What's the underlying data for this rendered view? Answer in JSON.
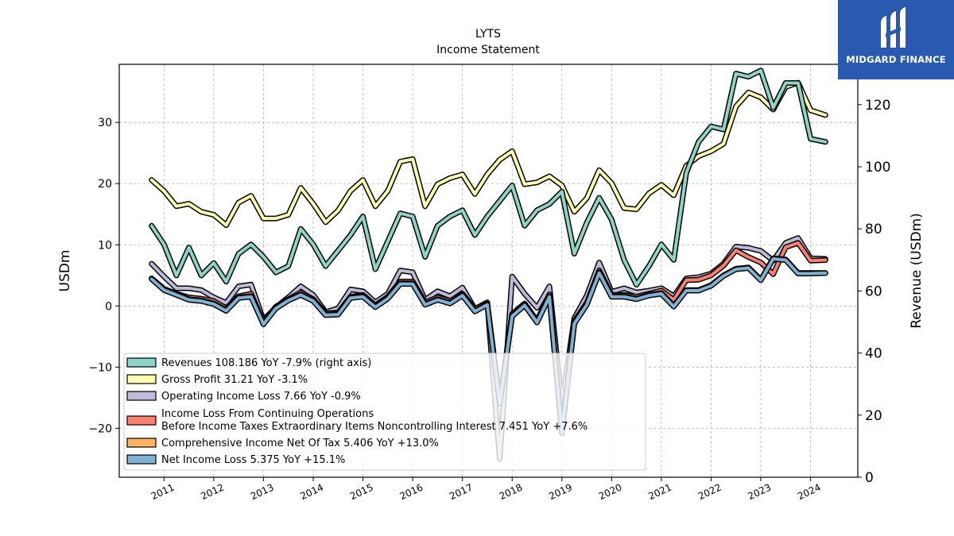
{
  "chart_data": {
    "type": "line",
    "title": "LYTS",
    "subtitle": "Income Statement",
    "ylabel": "USDm",
    "ylabel_right": "Revenue (USDm)",
    "ylim": [
      -28,
      39.5
    ],
    "ylim_right": [
      0,
      133
    ],
    "yticks": [
      -20,
      -10,
      0,
      10,
      20,
      30
    ],
    "yticks_right": [
      0,
      20,
      40,
      60,
      80,
      100,
      120
    ],
    "xlim": [
      2010.1,
      2024.95
    ],
    "xticks": [
      "2011",
      "2012",
      "2013",
      "2014",
      "2015",
      "2016",
      "2017",
      "2018",
      "2019",
      "2020",
      "2021",
      "2022",
      "2023",
      "2024"
    ],
    "grid": true,
    "legend_position": "lower-left",
    "x": [
      2010.75,
      2011.0,
      2011.25,
      2011.5,
      2011.75,
      2012.0,
      2012.25,
      2012.5,
      2012.75,
      2013.0,
      2013.25,
      2013.5,
      2013.75,
      2014.0,
      2014.25,
      2014.5,
      2014.75,
      2015.0,
      2015.25,
      2015.5,
      2015.75,
      2016.0,
      2016.25,
      2016.5,
      2016.75,
      2017.0,
      2017.25,
      2017.5,
      2017.75,
      2018.0,
      2018.25,
      2018.5,
      2018.75,
      2019.0,
      2019.25,
      2019.5,
      2019.75,
      2020.0,
      2020.25,
      2020.5,
      2020.75,
      2021.0,
      2021.25,
      2021.5,
      2021.75,
      2022.0,
      2022.25,
      2022.5,
      2022.75,
      2023.0,
      2023.25,
      2023.5,
      2023.75,
      2024.0,
      2024.3
    ],
    "series": [
      {
        "name": "Revenues",
        "legend": "Revenues  108.186 YoY -7.9% (right axis)",
        "axis": "right",
        "color": "#8dd3c7",
        "values": [
          81,
          75,
          65,
          74,
          65,
          69,
          63,
          72,
          75,
          71,
          66,
          68,
          80,
          75,
          68,
          73,
          78,
          84,
          67,
          76,
          85,
          84,
          71,
          81,
          84,
          86,
          78,
          84,
          89,
          94,
          81,
          86,
          88,
          92,
          72,
          82,
          90,
          83,
          70,
          62,
          68,
          75,
          70,
          98,
          108,
          113,
          112,
          130,
          129,
          131,
          119,
          127,
          127,
          109,
          108
        ]
      },
      {
        "name": "Gross Profit",
        "legend": "Gross Profit  31.21 YoY -3.1%",
        "axis": "left",
        "color": "#ffffb3",
        "values": [
          20.6,
          18.8,
          16.3,
          16.7,
          15.4,
          14.9,
          13.2,
          16.9,
          18.0,
          14.3,
          14.3,
          14.9,
          19.3,
          16.7,
          13.7,
          15.6,
          18.8,
          20.6,
          16.3,
          18.8,
          23.6,
          24.0,
          16.3,
          19.9,
          20.9,
          21.5,
          18.3,
          21.5,
          23.9,
          25.3,
          19.9,
          20.2,
          21.2,
          19.7,
          15.4,
          17.6,
          22.2,
          20.1,
          16.0,
          15.8,
          18.4,
          19.8,
          18.1,
          22.9,
          24.5,
          25.3,
          26.5,
          32.6,
          34.9,
          34.1,
          32.1,
          35.8,
          36.5,
          32.0,
          31.2
        ]
      },
      {
        "name": "Operating Income Loss",
        "legend": "Operating Income Loss  7.66 YoY -0.9%",
        "axis": "left",
        "color": "#bebada",
        "values": [
          6.9,
          4.8,
          2.9,
          2.9,
          2.6,
          1.4,
          0.5,
          3.2,
          3.5,
          -2.3,
          -0.2,
          1.4,
          3.2,
          1.8,
          -1.0,
          -0.4,
          2.7,
          2.4,
          0.6,
          2.0,
          5.8,
          5.5,
          1.0,
          2.4,
          1.6,
          3.0,
          -0.5,
          0.6,
          -25.0,
          4.8,
          2.0,
          -0.3,
          3.2,
          -16.0,
          -2.0,
          1.7,
          7.1,
          2.3,
          2.9,
          2.2,
          2.5,
          2.9,
          1.6,
          4.5,
          4.7,
          5.3,
          6.9,
          9.7,
          9.5,
          9.0,
          7.4,
          10.3,
          11.1,
          7.8,
          7.7
        ]
      },
      {
        "name": "Income Loss From Continuing Operations Before Income Taxes Extraordinary Items Noncontrolling Interest",
        "legend_line1": "Income Loss From Continuing Operations",
        "legend_line2": "Before Income Taxes Extraordinary Items Noncontrolling Interest  7.451 YoY +7.6%",
        "axis": "left",
        "color": "#fb8072",
        "values": [
          4.5,
          2.8,
          2.0,
          1.4,
          1.2,
          0.8,
          -0.4,
          1.6,
          2.0,
          -2.7,
          -0.1,
          1.1,
          2.2,
          1.1,
          -1.2,
          -1.1,
          1.5,
          1.8,
          0.1,
          1.5,
          4.0,
          4.0,
          0.6,
          1.4,
          0.8,
          2.0,
          -0.5,
          0.5,
          -15.5,
          -1.3,
          0.4,
          -2.4,
          1.9,
          -20.5,
          -2.5,
          0.5,
          5.8,
          1.8,
          1.8,
          1.5,
          2.0,
          2.5,
          1.0,
          4.2,
          4.3,
          5.0,
          6.6,
          9.1,
          8.0,
          7.1,
          5.2,
          9.6,
          10.3,
          7.4,
          7.5
        ]
      },
      {
        "name": "Comprehensive Income Net Of Tax",
        "legend": "Comprehensive Income Net Of Tax  5.406 YoY +13.0%",
        "axis": "left",
        "color": "#fdb462",
        "values": [
          4.5,
          2.7,
          1.9,
          1.1,
          0.9,
          0.4,
          -0.7,
          1.4,
          1.6,
          -2.9,
          -0.3,
          1.0,
          1.9,
          0.9,
          -1.4,
          -1.3,
          1.4,
          1.6,
          -0.1,
          1.3,
          3.7,
          3.7,
          0.3,
          1.1,
          0.5,
          1.8,
          -0.8,
          0.3,
          -15.8,
          -1.6,
          0.2,
          -2.6,
          1.6,
          -20.7,
          -2.8,
          0.3,
          5.5,
          1.6,
          1.6,
          1.2,
          1.8,
          2.1,
          0.0,
          2.6,
          2.6,
          3.4,
          5.0,
          6.1,
          6.3,
          4.3,
          7.8,
          7.6,
          5.4,
          5.4,
          5.4
        ]
      },
      {
        "name": "Net Income Loss",
        "legend": "Net Income Loss  5.375 YoY +15.1%",
        "axis": "left",
        "color": "#80b1d3",
        "values": [
          4.4,
          2.6,
          1.8,
          1.0,
          0.8,
          0.3,
          -0.8,
          1.3,
          1.5,
          -3.0,
          -0.4,
          0.9,
          1.8,
          0.8,
          -1.5,
          -1.4,
          1.3,
          1.5,
          -0.2,
          1.2,
          3.6,
          3.6,
          0.2,
          1.0,
          0.4,
          1.7,
          -0.9,
          0.2,
          -16.0,
          -1.7,
          0.1,
          -2.7,
          1.5,
          -20.8,
          -2.9,
          0.2,
          5.4,
          1.5,
          1.5,
          1.1,
          1.7,
          2.0,
          -0.1,
          2.5,
          2.5,
          3.3,
          4.9,
          6.0,
          6.2,
          4.2,
          7.7,
          7.5,
          5.3,
          5.3,
          5.375
        ]
      }
    ]
  },
  "logo": {
    "text": "MIDGARD FINANCE"
  }
}
